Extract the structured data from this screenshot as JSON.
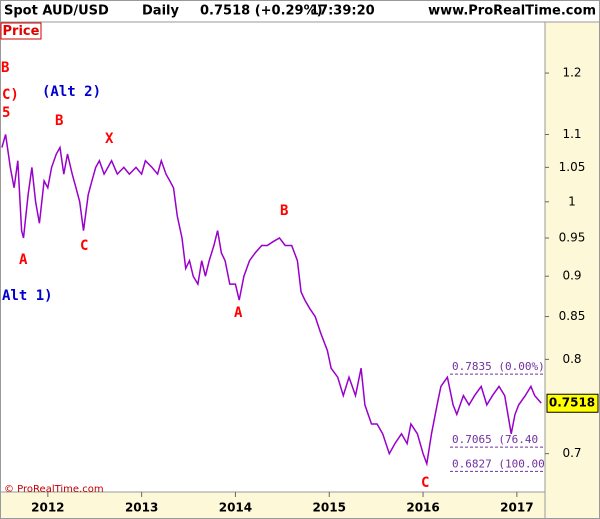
{
  "chart_data": {
    "type": "line",
    "title": "Spot AUD/USD",
    "timeframe": "Daily",
    "quote": "0.7518 (+0.29%)",
    "time": "17:39:20",
    "source": "www.ProRealTime.com",
    "panel_label": "Price",
    "copyright": "© ProRealTime.com",
    "color": "#9900cc",
    "log_scale": true,
    "grid": false,
    "x": [
      2011.51,
      2011.55,
      2011.6,
      2011.64,
      2011.68,
      2011.72,
      2011.74,
      2011.79,
      2011.83,
      2011.87,
      2011.91,
      2011.96,
      2012.0,
      2012.04,
      2012.09,
      2012.13,
      2012.17,
      2012.21,
      2012.26,
      2012.3,
      2012.34,
      2012.38,
      2012.43,
      2012.47,
      2012.51,
      2012.55,
      2012.6,
      2012.64,
      2012.68,
      2012.74,
      2012.81,
      2012.87,
      2012.94,
      2013.0,
      2013.04,
      2013.11,
      2013.17,
      2013.21,
      2013.26,
      2013.3,
      2013.34,
      2013.38,
      2013.43,
      2013.47,
      2013.51,
      2013.55,
      2013.6,
      2013.64,
      2013.68,
      2013.72,
      2013.77,
      2013.81,
      2013.85,
      2013.89,
      2013.94,
      2014.0,
      2014.04,
      2014.09,
      2014.15,
      2014.21,
      2014.28,
      2014.34,
      2014.4,
      2014.47,
      2014.53,
      2014.6,
      2014.66,
      2014.7,
      2014.74,
      2014.79,
      2014.85,
      2014.91,
      2014.98,
      2015.02,
      2015.09,
      2015.15,
      2015.21,
      2015.28,
      2015.34,
      2015.38,
      2015.45,
      2015.51,
      2015.57,
      2015.64,
      2015.7,
      2015.77,
      2015.83,
      2015.87,
      2015.94,
      2016.0,
      2016.04,
      2016.09,
      2016.15,
      2016.19,
      2016.26,
      2016.32,
      2016.36,
      2016.43,
      2016.49,
      2016.55,
      2016.62,
      2016.68,
      2016.74,
      2016.81,
      2016.87,
      2016.94,
      2016.98,
      2017.02,
      2017.09,
      2017.15,
      2017.19,
      2017.26
    ],
    "values": [
      1.08,
      1.1,
      1.05,
      1.02,
      1.06,
      0.96,
      0.95,
      1.01,
      1.05,
      1.0,
      0.97,
      1.03,
      1.02,
      1.05,
      1.07,
      1.08,
      1.04,
      1.07,
      1.04,
      1.02,
      1.0,
      0.96,
      1.01,
      1.03,
      1.05,
      1.06,
      1.04,
      1.05,
      1.06,
      1.04,
      1.05,
      1.04,
      1.05,
      1.04,
      1.06,
      1.05,
      1.04,
      1.06,
      1.04,
      1.03,
      1.02,
      0.98,
      0.95,
      0.91,
      0.92,
      0.9,
      0.89,
      0.92,
      0.9,
      0.92,
      0.94,
      0.96,
      0.93,
      0.92,
      0.89,
      0.89,
      0.87,
      0.9,
      0.92,
      0.93,
      0.94,
      0.94,
      0.945,
      0.95,
      0.94,
      0.94,
      0.92,
      0.88,
      0.87,
      0.86,
      0.85,
      0.83,
      0.81,
      0.79,
      0.78,
      0.76,
      0.78,
      0.76,
      0.79,
      0.75,
      0.73,
      0.73,
      0.72,
      0.7,
      0.71,
      0.72,
      0.71,
      0.73,
      0.72,
      0.7,
      0.69,
      0.72,
      0.75,
      0.77,
      0.78,
      0.75,
      0.74,
      0.76,
      0.75,
      0.76,
      0.77,
      0.75,
      0.76,
      0.77,
      0.76,
      0.72,
      0.74,
      0.75,
      0.76,
      0.77,
      0.76,
      0.752
    ],
    "xlim": [
      2011.49,
      2017.3
    ],
    "xticks": [
      2012,
      2013,
      2014,
      2015,
      2016,
      2017
    ],
    "ylim": [
      0.663,
      1.29
    ],
    "yticks": [
      0.7,
      0.8,
      0.85,
      0.9,
      0.95,
      1,
      1.05,
      1.1,
      1.2
    ],
    "last_price": 0.7518,
    "fib_levels": [
      {
        "value": 0.7835,
        "label": "0.7835 (0.00%)"
      },
      {
        "value": 0.7065,
        "label": "0.7065 (76.40"
      },
      {
        "value": 0.6827,
        "label": "0.6827 (100.00"
      }
    ],
    "annotations": [
      {
        "text": "B",
        "color": "#ff0000"
      },
      {
        "text": "C)",
        "color": "#ff0000"
      },
      {
        "text": "5",
        "color": "#ff0000"
      },
      {
        "text": "(Alt 2)",
        "color": "#0000cc"
      },
      {
        "text": "B",
        "color": "#ff0000"
      },
      {
        "text": "X",
        "color": "#ff0000"
      },
      {
        "text": "A",
        "color": "#ff0000"
      },
      {
        "text": "C",
        "color": "#ff0000"
      },
      {
        "text": "Alt 1)",
        "color": "#0000cc"
      },
      {
        "text": "B",
        "color": "#ff0000"
      },
      {
        "text": "A",
        "color": "#ff0000"
      },
      {
        "text": "C",
        "color": "#ff0000"
      }
    ]
  }
}
